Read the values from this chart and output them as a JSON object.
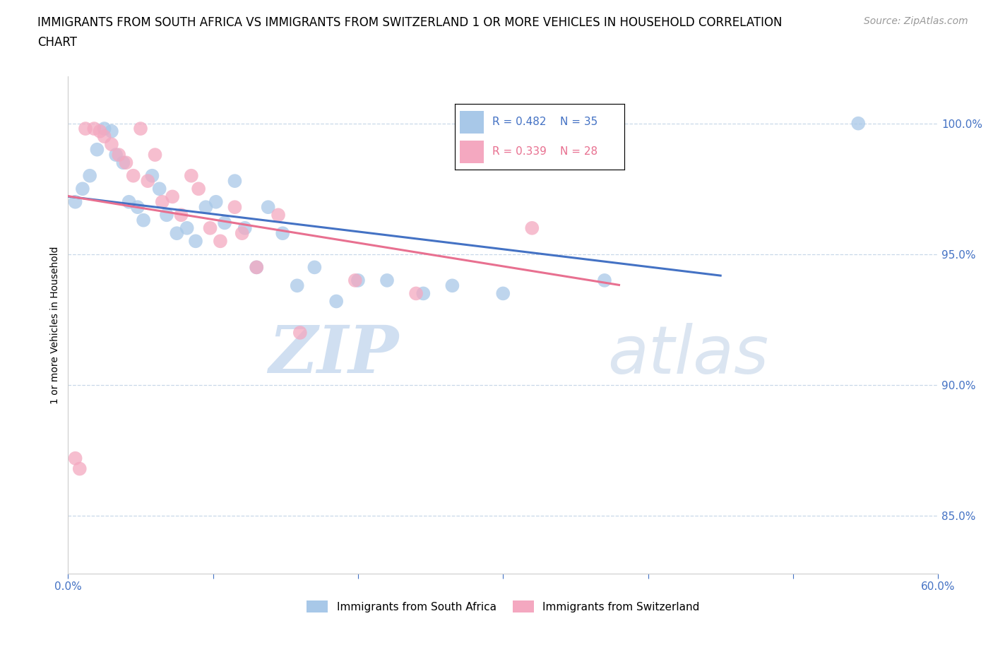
{
  "title_line1": "IMMIGRANTS FROM SOUTH AFRICA VS IMMIGRANTS FROM SWITZERLAND 1 OR MORE VEHICLES IN HOUSEHOLD CORRELATION",
  "title_line2": "CHART",
  "source": "Source: ZipAtlas.com",
  "ylabel": "1 or more Vehicles in Household",
  "xmin": 0.0,
  "xmax": 0.6,
  "ymin": 0.828,
  "ymax": 1.018,
  "yticks": [
    0.85,
    0.9,
    0.95,
    1.0
  ],
  "ytick_labels": [
    "85.0%",
    "90.0%",
    "95.0%",
    "100.0%"
  ],
  "xticks": [
    0.0,
    0.1,
    0.2,
    0.3,
    0.4,
    0.5,
    0.6
  ],
  "xtick_labels": [
    "0.0%",
    "",
    "",
    "",
    "",
    "",
    "60.0%"
  ],
  "south_africa_color": "#a8c8e8",
  "switzerland_color": "#f4a8c0",
  "south_africa_R": 0.482,
  "south_africa_N": 35,
  "switzerland_R": 0.339,
  "switzerland_N": 28,
  "south_africa_x": [
    0.005,
    0.01,
    0.015,
    0.02,
    0.025,
    0.03,
    0.033,
    0.038,
    0.042,
    0.048,
    0.052,
    0.058,
    0.063,
    0.068,
    0.075,
    0.082,
    0.088,
    0.095,
    0.102,
    0.108,
    0.115,
    0.122,
    0.13,
    0.138,
    0.148,
    0.158,
    0.17,
    0.185,
    0.2,
    0.22,
    0.245,
    0.265,
    0.3,
    0.37,
    0.545
  ],
  "south_africa_y": [
    0.97,
    0.975,
    0.98,
    0.99,
    0.998,
    0.997,
    0.988,
    0.985,
    0.97,
    0.968,
    0.963,
    0.98,
    0.975,
    0.965,
    0.958,
    0.96,
    0.955,
    0.968,
    0.97,
    0.962,
    0.978,
    0.96,
    0.945,
    0.968,
    0.958,
    0.938,
    0.945,
    0.932,
    0.94,
    0.94,
    0.935,
    0.938,
    0.935,
    0.94,
    1.0
  ],
  "switzerland_x": [
    0.005,
    0.008,
    0.012,
    0.018,
    0.022,
    0.025,
    0.03,
    0.035,
    0.04,
    0.045,
    0.05,
    0.055,
    0.06,
    0.065,
    0.072,
    0.078,
    0.085,
    0.09,
    0.098,
    0.105,
    0.115,
    0.12,
    0.13,
    0.145,
    0.16,
    0.198,
    0.24,
    0.32
  ],
  "switzerland_y": [
    0.872,
    0.868,
    0.998,
    0.998,
    0.997,
    0.995,
    0.992,
    0.988,
    0.985,
    0.98,
    0.998,
    0.978,
    0.988,
    0.97,
    0.972,
    0.965,
    0.98,
    0.975,
    0.96,
    0.955,
    0.968,
    0.958,
    0.945,
    0.965,
    0.92,
    0.94,
    0.935,
    0.96
  ],
  "watermark_zip": "ZIP",
  "watermark_atlas": "atlas",
  "axis_color": "#4472c4",
  "grid_color": "#c8d8e8",
  "line_blue": "#4472c4",
  "line_pink": "#e87090",
  "title_fontsize": 12,
  "axis_label_fontsize": 10,
  "tick_fontsize": 11,
  "source_fontsize": 10
}
